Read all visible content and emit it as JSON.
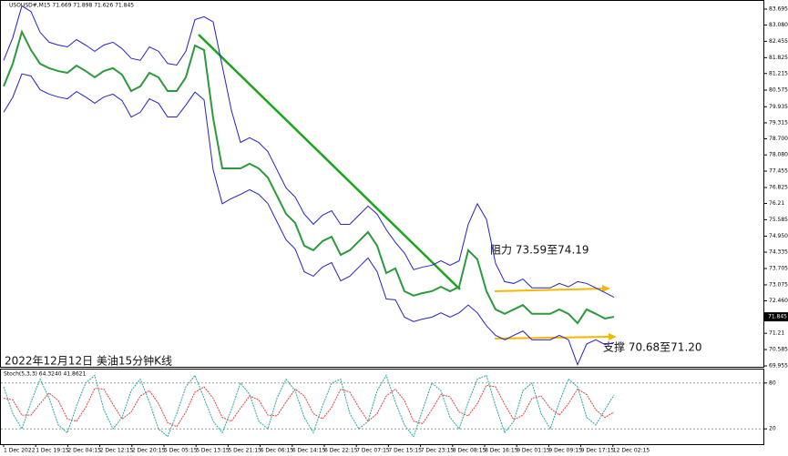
{
  "chart_data": [
    {
      "type": "line",
      "title": "USOUSD#,M15  71.669 71.898 71.626 71.845",
      "annotations": [
        "阻力 73.59至74.19",
        "支撑 70.68至71.20",
        "2022年12月12日 美油15分钟K线"
      ],
      "ylim": [
        69.955,
        83.695
      ],
      "yticks": [
        83.695,
        {
          "value": 83.08,
          "label": "83.080"
        },
        82.455,
        81.825,
        81.215,
        80.575,
        79.935,
        79.315,
        {
          "value": 78.7,
          "label": "78.700"
        },
        {
          "value": 78.08,
          "label": "78.080"
        },
        77.455,
        76.825,
        76.21,
        75.585,
        {
          "value": 74.95,
          "label": "74.950"
        },
        74.335,
        73.705,
        73.075,
        {
          "value": 72.46,
          "label": "72.460"
        },
        71.21,
        70.585,
        69.955
      ],
      "xtick_labels": [
        "1 Dec 2022",
        "1 Dec 19:15",
        "2 Dec 04:15",
        "2 Dec 12:15",
        "2 Dec 20:15",
        "5 Dec 05:15",
        "5 Dec 13:15",
        "5 Dec 21:15",
        "6 Dec 06:15",
        "6 Dec 14:15",
        "6 Dec 22:15",
        "7 Dec 07:15",
        "7 Dec 15:15",
        "7 Dec 23:15",
        "8 Dec 08:15",
        "8 Dec 16:15",
        "9 Dec 01:15",
        "9 Dec 09:15",
        "9 Dec 17:15",
        "12 Dec 02:15"
      ],
      "series": [
        {
          "color": "#2a9a3a",
          "values": [
            80.72,
            81.59,
            82.82,
            82.12,
            81.59,
            81.42,
            81.31,
            81.24,
            81.52,
            81.31,
            81.07,
            81.31,
            81.42,
            81.17,
            80.54,
            80.72,
            81.24,
            81.07,
            80.54,
            80.54,
            81.07,
            82.29,
            82.12,
            79.49,
            77.56,
            77.56,
            77.56,
            77.74,
            77.56,
            77.21,
            76.51,
            75.81,
            75.46,
            74.58,
            74.41,
            74.76,
            74.93,
            74.23,
            74.41,
            74.76,
            75.11,
            74.58,
            73.53,
            73.71,
            72.83,
            72.66,
            72.76,
            72.83,
            73.0,
            72.83,
            73.0,
            74.41,
            74.06,
            72.83,
            72.13,
            71.96,
            72.13,
            72.3,
            71.96,
            71.96,
            71.96,
            72.13,
            71.96,
            71.6,
            72.13,
            71.96,
            71.78,
            71.845
          ]
        },
        {
          "color": "#2222cc",
          "values": [
            81.72,
            82.59,
            83.82,
            83.6,
            82.8,
            82.42,
            82.31,
            82.24,
            82.52,
            82.31,
            82.07,
            82.31,
            82.42,
            82.17,
            81.8,
            81.72,
            82.24,
            82.07,
            81.6,
            81.54,
            82.07,
            83.29,
            83.4,
            83.2,
            81.5,
            79.8,
            78.56,
            78.74,
            78.56,
            78.21,
            77.51,
            76.81,
            76.46,
            75.8,
            75.41,
            75.76,
            75.93,
            75.4,
            75.41,
            75.76,
            76.11,
            75.8,
            75.2,
            74.71,
            74.3,
            73.66,
            73.76,
            73.83,
            74.0,
            73.83,
            74.0,
            75.41,
            76.2,
            75.6,
            73.9,
            73.2,
            73.13,
            73.3,
            72.96,
            72.96,
            72.96,
            73.13,
            73.0,
            73.2,
            73.13,
            72.96,
            72.78,
            72.6
          ]
        },
        {
          "color": "#2222cc",
          "values": [
            79.72,
            80.3,
            81.2,
            81.12,
            80.59,
            80.42,
            80.31,
            80.24,
            80.52,
            80.31,
            80.07,
            80.31,
            80.42,
            80.17,
            79.54,
            79.72,
            80.24,
            80.07,
            79.54,
            79.54,
            80.0,
            80.5,
            80.2,
            77.5,
            76.2,
            76.4,
            76.56,
            76.74,
            76.56,
            76.21,
            75.51,
            74.81,
            74.46,
            73.58,
            73.41,
            73.76,
            73.93,
            73.23,
            73.41,
            73.76,
            74.11,
            73.58,
            72.53,
            72.5,
            71.83,
            71.66,
            71.76,
            71.83,
            72.0,
            71.83,
            72.0,
            72.3,
            72.0,
            71.5,
            71.13,
            70.96,
            71.13,
            71.3,
            70.96,
            70.96,
            70.96,
            71.13,
            70.96,
            70.0,
            70.8,
            70.96,
            70.78,
            70.85
          ]
        }
      ]
    },
    {
      "type": "line",
      "title": "Stoch(5,3,3) 64.3240 41.8621",
      "ylim": [
        0,
        100
      ],
      "yticks": [
        80,
        20
      ],
      "series": [
        {
          "color": "#20a8a0",
          "values": [
            75,
            40,
            20,
            55,
            85,
            60,
            25,
            15,
            50,
            80,
            90,
            45,
            20,
            35,
            70,
            85,
            55,
            20,
            10,
            40,
            75,
            90,
            60,
            30,
            15,
            45,
            80,
            65,
            30,
            20,
            60,
            85,
            70,
            35,
            15,
            50,
            80,
            85,
            40,
            20,
            30,
            70,
            90,
            55,
            25,
            10,
            45,
            80,
            70,
            35,
            20,
            55,
            85,
            90,
            50,
            15,
            30,
            70,
            80,
            40,
            20,
            55,
            85,
            75,
            35,
            25,
            45,
            64.324
          ]
        },
        {
          "color": "#e04040",
          "values": [
            60,
            58,
            38,
            38,
            53,
            67,
            57,
            33,
            30,
            48,
            73,
            72,
            52,
            33,
            42,
            63,
            70,
            53,
            28,
            23,
            42,
            68,
            75,
            60,
            35,
            30,
            47,
            63,
            58,
            38,
            37,
            55,
            72,
            63,
            40,
            33,
            48,
            72,
            68,
            48,
            30,
            40,
            63,
            72,
            57,
            30,
            27,
            45,
            65,
            62,
            42,
            37,
            53,
            77,
            75,
            52,
            32,
            38,
            60,
            63,
            47,
            38,
            53,
            72,
            65,
            45,
            35,
            41.8621
          ]
        }
      ]
    }
  ]
}
